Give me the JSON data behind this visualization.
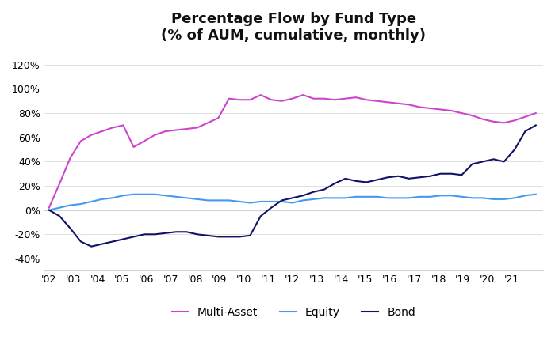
{
  "title": "Percentage Flow by Fund Type",
  "subtitle": "(% of AUM, cumulative, monthly)",
  "ylim": [
    -0.45,
    0.13
  ],
  "yticks": [
    -0.4,
    -0.2,
    0.0,
    0.2,
    0.4,
    0.6,
    0.8,
    1.0,
    1.2
  ],
  "colors": {
    "multi_asset": "#CC44CC",
    "equity": "#4499EE",
    "bond": "#111166"
  },
  "legend_labels": [
    "Multi-Asset",
    "Equity",
    "Bond"
  ],
  "background": "#FFFFFF",
  "x_labels": [
    "'02",
    "'03",
    "'04",
    "'05",
    "'06",
    "'07",
    "'08",
    "'09",
    "'10",
    "'11",
    "'12",
    "'13",
    "'14",
    "'15",
    "'16",
    "'17",
    "'18",
    "'19",
    "'20",
    "'21"
  ],
  "multi_asset": [
    0.02,
    0.22,
    0.43,
    0.57,
    0.62,
    0.65,
    0.68,
    0.7,
    0.52,
    0.57,
    0.62,
    0.65,
    0.66,
    0.67,
    0.68,
    0.72,
    0.76,
    0.92,
    0.91,
    0.91,
    0.95,
    0.91,
    0.9,
    0.92,
    0.95,
    0.92,
    0.92,
    0.91,
    0.92,
    0.93,
    0.91,
    0.9,
    0.89,
    0.88,
    0.87,
    0.85,
    0.84,
    0.83,
    0.82,
    0.8,
    0.78,
    0.75,
    0.73,
    0.72,
    0.74,
    0.77,
    0.8
  ],
  "equity": [
    0.0,
    0.02,
    0.04,
    0.05,
    0.07,
    0.09,
    0.1,
    0.12,
    0.13,
    0.13,
    0.13,
    0.12,
    0.11,
    0.1,
    0.09,
    0.08,
    0.08,
    0.08,
    0.07,
    0.06,
    0.07,
    0.07,
    0.07,
    0.06,
    0.08,
    0.09,
    0.1,
    0.1,
    0.1,
    0.11,
    0.11,
    0.11,
    0.1,
    0.1,
    0.1,
    0.11,
    0.11,
    0.12,
    0.12,
    0.11,
    0.1,
    0.1,
    0.09,
    0.09,
    0.1,
    0.12,
    0.13
  ],
  "bond": [
    0.0,
    -0.05,
    -0.15,
    -0.26,
    -0.3,
    -0.28,
    -0.26,
    -0.24,
    -0.22,
    -0.2,
    -0.2,
    -0.19,
    -0.18,
    -0.18,
    -0.2,
    -0.21,
    -0.22,
    -0.22,
    -0.22,
    -0.21,
    -0.05,
    0.02,
    0.08,
    0.1,
    0.12,
    0.15,
    0.17,
    0.22,
    0.26,
    0.24,
    0.23,
    0.25,
    0.27,
    0.28,
    0.26,
    0.27,
    0.28,
    0.3,
    0.3,
    0.29,
    0.38,
    0.4,
    0.42,
    0.4,
    0.5,
    0.65,
    0.7
  ]
}
